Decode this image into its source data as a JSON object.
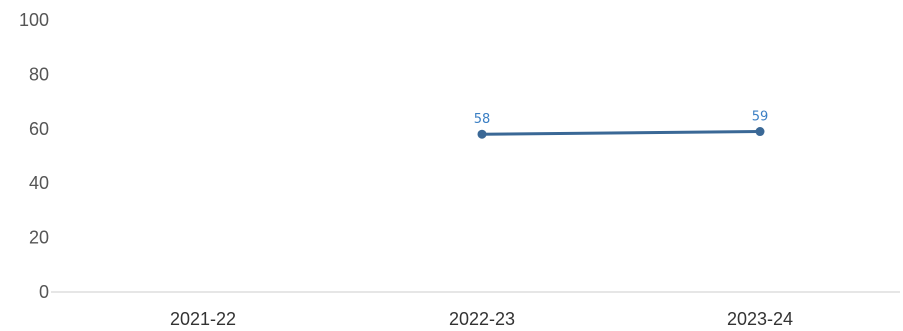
{
  "chart_data": {
    "type": "line",
    "categories": [
      "2021-22",
      "2022-23",
      "2023-24"
    ],
    "series": [
      {
        "values": [
          null,
          58,
          59
        ],
        "data_labels": [
          "",
          "58",
          "59"
        ],
        "color": "#3a6896",
        "label_color": "#3b7fc4"
      }
    ],
    "ylim": [
      0,
      100
    ],
    "y_ticks": [
      0,
      20,
      40,
      60,
      80,
      100
    ],
    "y_tick_labels": [
      "0",
      "20",
      "40",
      "60",
      "80",
      "100"
    ],
    "title": "",
    "xlabel": "",
    "ylabel": "",
    "grid": false,
    "legend": "none",
    "axis_color": "#cccccc"
  }
}
